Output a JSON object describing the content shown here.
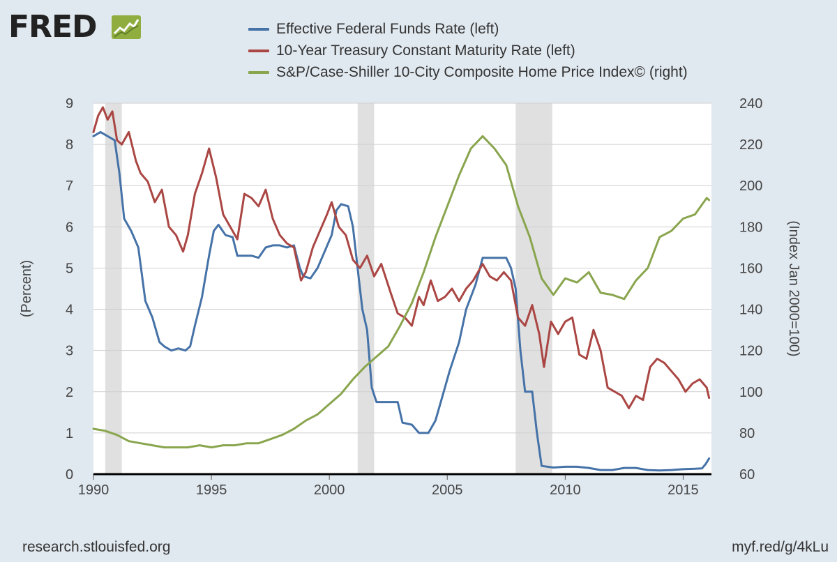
{
  "logo": {
    "text": "FRED"
  },
  "colors": {
    "background": "#e1e9f0",
    "plot": "#ffffff",
    "recession": "#e0e0e0",
    "fedfunds": "#4572a7",
    "treasury": "#aa4643",
    "caseshiller": "#89a54e"
  },
  "footer": {
    "left": "research.stlouisfed.org",
    "right": "myf.red/g/4kLu"
  },
  "chart_data": {
    "type": "line",
    "title": "",
    "xlabel": "",
    "ylabel": "(Percent)",
    "y2label": "(Index Jan 2000=100)",
    "xlim": [
      1990,
      2016.2
    ],
    "ylim": [
      0,
      9
    ],
    "y2lim": [
      60,
      240
    ],
    "xticks": [
      1990,
      1995,
      2000,
      2005,
      2010,
      2015
    ],
    "xtick_labels": [
      "1990",
      "1995",
      "2000",
      "2005",
      "2010",
      "2015"
    ],
    "yticks": [
      0,
      1,
      2,
      3,
      4,
      5,
      6,
      7,
      8,
      9
    ],
    "ytick_labels": [
      "0",
      "1",
      "2",
      "3",
      "4",
      "5",
      "6",
      "7",
      "8",
      "9"
    ],
    "y2ticks": [
      60,
      80,
      100,
      120,
      140,
      160,
      180,
      200,
      220,
      240
    ],
    "y2tick_labels": [
      "60",
      "80",
      "100",
      "120",
      "140",
      "160",
      "180",
      "200",
      "220",
      "240"
    ],
    "grid": true,
    "legend_position": "top",
    "recessions": [
      [
        1990.5,
        1991.2
      ],
      [
        2001.2,
        2001.9
      ],
      [
        2007.9,
        2009.45
      ]
    ],
    "series": [
      {
        "name": "Effective Federal Funds Rate (left)",
        "axis": "left",
        "color": "#4572a7",
        "x": [
          1990.0,
          1990.3,
          1990.6,
          1990.9,
          1991.1,
          1991.3,
          1991.6,
          1991.9,
          1992.2,
          1992.5,
          1992.8,
          1993.0,
          1993.3,
          1993.6,
          1993.9,
          1994.1,
          1994.3,
          1994.6,
          1994.9,
          1995.1,
          1995.3,
          1995.6,
          1995.9,
          1996.1,
          1996.4,
          1996.7,
          1997.0,
          1997.3,
          1997.6,
          1997.9,
          1998.2,
          1998.5,
          1998.75,
          1998.9,
          1999.2,
          1999.5,
          1999.8,
          2000.1,
          2000.3,
          2000.5,
          2000.8,
          2001.0,
          2001.2,
          2001.4,
          2001.6,
          2001.8,
          2002.0,
          2002.4,
          2002.9,
          2003.1,
          2003.5,
          2003.8,
          2004.2,
          2004.5,
          2004.8,
          2005.1,
          2005.5,
          2005.8,
          2006.2,
          2006.5,
          2006.8,
          2007.2,
          2007.5,
          2007.7,
          2007.9,
          2008.1,
          2008.3,
          2008.6,
          2008.8,
          2009.0,
          2009.5,
          2010.0,
          2010.5,
          2011.0,
          2011.5,
          2012.0,
          2012.5,
          2013.0,
          2013.5,
          2014.0,
          2014.5,
          2015.0,
          2015.5,
          2015.8,
          2015.95,
          2016.1
        ],
        "values": [
          8.2,
          8.3,
          8.2,
          8.1,
          7.3,
          6.2,
          5.9,
          5.5,
          4.2,
          3.8,
          3.2,
          3.1,
          3.0,
          3.05,
          3.0,
          3.1,
          3.6,
          4.3,
          5.3,
          5.9,
          6.05,
          5.8,
          5.75,
          5.3,
          5.3,
          5.3,
          5.25,
          5.5,
          5.55,
          5.55,
          5.5,
          5.55,
          5.0,
          4.8,
          4.75,
          5.0,
          5.4,
          5.8,
          6.4,
          6.55,
          6.5,
          6.0,
          5.0,
          4.0,
          3.5,
          2.1,
          1.75,
          1.75,
          1.75,
          1.25,
          1.2,
          1.0,
          1.0,
          1.3,
          1.9,
          2.5,
          3.2,
          4.0,
          4.6,
          5.25,
          5.25,
          5.25,
          5.25,
          5.0,
          4.5,
          3.0,
          2.0,
          2.0,
          1.0,
          0.2,
          0.16,
          0.18,
          0.18,
          0.15,
          0.1,
          0.1,
          0.15,
          0.15,
          0.1,
          0.09,
          0.1,
          0.12,
          0.13,
          0.14,
          0.24,
          0.38
        ]
      },
      {
        "name": "10-Year Treasury Constant Maturity Rate (left)",
        "axis": "left",
        "color": "#aa4643",
        "x": [
          1990.0,
          1990.2,
          1990.4,
          1990.6,
          1990.8,
          1991.0,
          1991.2,
          1991.5,
          1991.8,
          1992.0,
          1992.3,
          1992.6,
          1992.9,
          1993.2,
          1993.5,
          1993.8,
          1994.0,
          1994.3,
          1994.6,
          1994.9,
          1995.2,
          1995.5,
          1995.9,
          1996.1,
          1996.4,
          1996.7,
          1997.0,
          1997.3,
          1997.6,
          1997.9,
          1998.2,
          1998.5,
          1998.8,
          1999.0,
          1999.3,
          1999.6,
          1999.9,
          2000.1,
          2000.4,
          2000.7,
          2001.0,
          2001.3,
          2001.6,
          2001.9,
          2002.2,
          2002.6,
          2002.9,
          2003.2,
          2003.5,
          2003.8,
          2004.0,
          2004.3,
          2004.6,
          2004.9,
          2005.2,
          2005.5,
          2005.8,
          2006.1,
          2006.5,
          2006.8,
          2007.1,
          2007.4,
          2007.7,
          2008.0,
          2008.3,
          2008.6,
          2008.9,
          2009.1,
          2009.4,
          2009.7,
          2010.0,
          2010.3,
          2010.6,
          2010.9,
          2011.2,
          2011.5,
          2011.8,
          2012.1,
          2012.4,
          2012.7,
          2013.0,
          2013.3,
          2013.6,
          2013.9,
          2014.2,
          2014.5,
          2014.8,
          2015.1,
          2015.4,
          2015.7,
          2016.0,
          2016.1
        ],
        "values": [
          8.3,
          8.7,
          8.9,
          8.6,
          8.8,
          8.1,
          8.0,
          8.3,
          7.6,
          7.3,
          7.1,
          6.6,
          6.9,
          6.0,
          5.8,
          5.4,
          5.8,
          6.8,
          7.3,
          7.9,
          7.2,
          6.3,
          5.9,
          5.7,
          6.8,
          6.7,
          6.5,
          6.9,
          6.2,
          5.8,
          5.6,
          5.5,
          4.7,
          4.9,
          5.5,
          5.9,
          6.3,
          6.6,
          6.0,
          5.8,
          5.2,
          5.0,
          5.3,
          4.8,
          5.1,
          4.4,
          3.9,
          3.8,
          3.6,
          4.3,
          4.1,
          4.7,
          4.2,
          4.3,
          4.5,
          4.2,
          4.5,
          4.7,
          5.1,
          4.8,
          4.7,
          4.9,
          4.7,
          3.8,
          3.6,
          4.1,
          3.4,
          2.6,
          3.7,
          3.4,
          3.7,
          3.8,
          2.9,
          2.8,
          3.5,
          3.0,
          2.1,
          2.0,
          1.9,
          1.6,
          1.9,
          1.8,
          2.6,
          2.8,
          2.7,
          2.5,
          2.3,
          2.0,
          2.2,
          2.3,
          2.1,
          1.85
        ]
      },
      {
        "name": "S&P/Case-Shiller 10-City Composite Home Price Index© (right)",
        "axis": "right",
        "color": "#89a54e",
        "x": [
          1990.0,
          1990.5,
          1991.0,
          1991.5,
          1992.0,
          1992.5,
          1993.0,
          1993.5,
          1994.0,
          1994.5,
          1995.0,
          1995.5,
          1996.0,
          1996.5,
          1997.0,
          1997.5,
          1998.0,
          1998.5,
          1999.0,
          1999.5,
          2000.0,
          2000.5,
          2001.0,
          2001.5,
          2002.0,
          2002.5,
          2003.0,
          2003.5,
          2004.0,
          2004.5,
          2005.0,
          2005.5,
          2006.0,
          2006.5,
          2007.0,
          2007.5,
          2008.0,
          2008.5,
          2009.0,
          2009.5,
          2010.0,
          2010.5,
          2011.0,
          2011.5,
          2012.0,
          2012.5,
          2013.0,
          2013.5,
          2014.0,
          2014.5,
          2015.0,
          2015.5,
          2016.0,
          2016.1
        ],
        "values": [
          82,
          81,
          79,
          76,
          75,
          74,
          73,
          73,
          73,
          74,
          73,
          74,
          74,
          75,
          75,
          77,
          79,
          82,
          86,
          89,
          94,
          99,
          106,
          112,
          117,
          122,
          132,
          143,
          158,
          175,
          190,
          205,
          218,
          224,
          218,
          210,
          190,
          175,
          155,
          147,
          155,
          153,
          158,
          148,
          147,
          145,
          154,
          160,
          175,
          178,
          184,
          186,
          194,
          193
        ]
      }
    ]
  }
}
